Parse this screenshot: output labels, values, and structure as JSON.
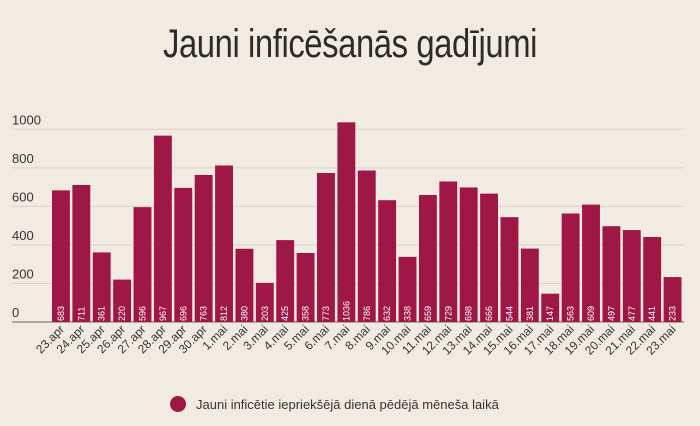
{
  "colors": {
    "bar": "#9e1747",
    "background": "#f2ebe2",
    "grid": "#d9d2ca"
  },
  "chart_data": {
    "type": "bar",
    "title": "Jauni inficēšanās gadījumi",
    "categories": [
      "23.apr",
      "24.apr",
      "25.apr",
      "26.apr",
      "27.apr",
      "28.apr",
      "29.apr",
      "30.apr",
      "1.mai",
      "2.mai",
      "3.mai",
      "4.mai",
      "5.mai",
      "6.mai",
      "7.mai",
      "8.mai",
      "9.mai",
      "10.mai",
      "11.mai",
      "12.mai",
      "13.mai",
      "14.mai",
      "15.mai",
      "16.mai",
      "17.mai",
      "18.mai",
      "19.mai",
      "20.mai",
      "21.mai",
      "22.mai",
      "23.mai"
    ],
    "series": [
      {
        "name": "Jauni inficētie iepriekšējā dienā pēdējā mēneša laikā",
        "values": [
          683,
          711,
          361,
          220,
          596,
          967,
          696,
          763,
          812,
          380,
          203,
          425,
          358,
          773,
          1036,
          786,
          632,
          338,
          659,
          729,
          698,
          666,
          544,
          381,
          147,
          563,
          609,
          497,
          477,
          441,
          233
        ]
      }
    ],
    "ylim": [
      0,
      1100
    ],
    "yticks": [
      0,
      200,
      400,
      600,
      800,
      1000
    ],
    "grid": true,
    "data_labels": true,
    "legend_position": "bottom"
  }
}
